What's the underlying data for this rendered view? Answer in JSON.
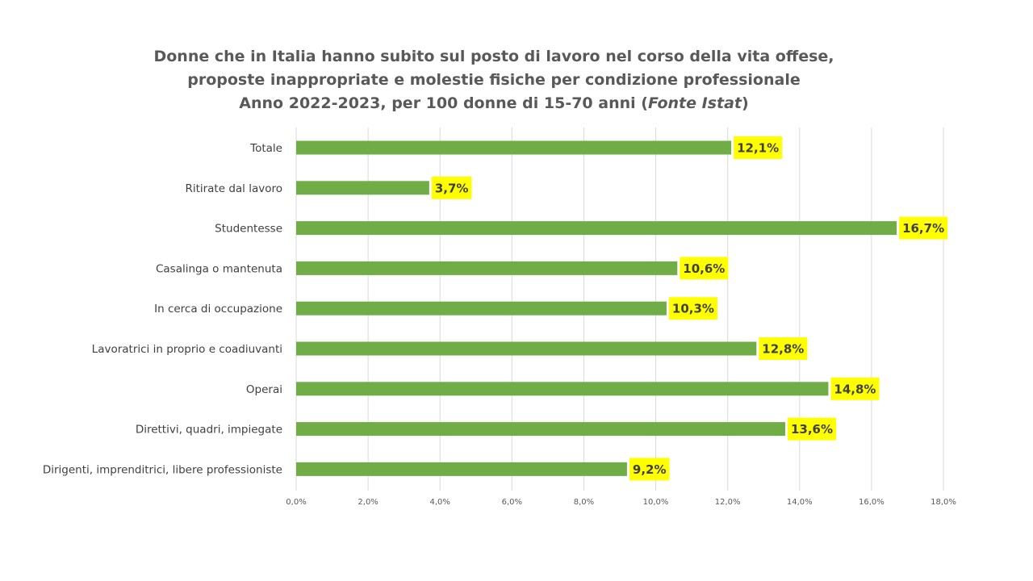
{
  "title": {
    "line1": "Donne che in Italia hanno subito sul posto di lavoro nel corso della vita offese,",
    "line2": "proposte inappropriate e molestie fisiche  per condizione professionale",
    "line3_main": "Anno 2022-2023, per 100 donne di 15-70 anni (",
    "line3_italic": "Fonte Istat",
    "line3_end": ")"
  },
  "chart_data": {
    "type": "bar",
    "orientation": "horizontal",
    "categories": [
      "Totale",
      "Ritirate dal lavoro",
      "Studentesse",
      "Casalinga o mantenuta",
      "In cerca di occupazione",
      "Lavoratrici in proprio e coadiuvanti",
      "Operai",
      "Direttivi, quadri, impiegate",
      "Dirigenti, imprenditrici, libere professioniste"
    ],
    "values": [
      12.1,
      3.7,
      16.7,
      10.6,
      10.3,
      12.8,
      14.8,
      13.6,
      9.2
    ],
    "data_labels": [
      "12,1%",
      "3,7%",
      "16,7%",
      "10,6%",
      "10,3%",
      "12,8%",
      "14,8%",
      "13,6%",
      "9,2%"
    ],
    "xlim": [
      0,
      18
    ],
    "x_ticks": [
      0,
      2,
      4,
      6,
      8,
      10,
      12,
      14,
      16,
      18
    ],
    "x_tick_labels": [
      "0,0%",
      "2,0%",
      "4,0%",
      "6,0%",
      "8,0%",
      "10,0%",
      "12,0%",
      "14,0%",
      "16,0%",
      "18,0%"
    ],
    "grid": "vertical",
    "legend": "none",
    "colors": {
      "bar": "#70ad47",
      "label_bg": "#ffff00",
      "grid": "#d9d9d9"
    }
  }
}
